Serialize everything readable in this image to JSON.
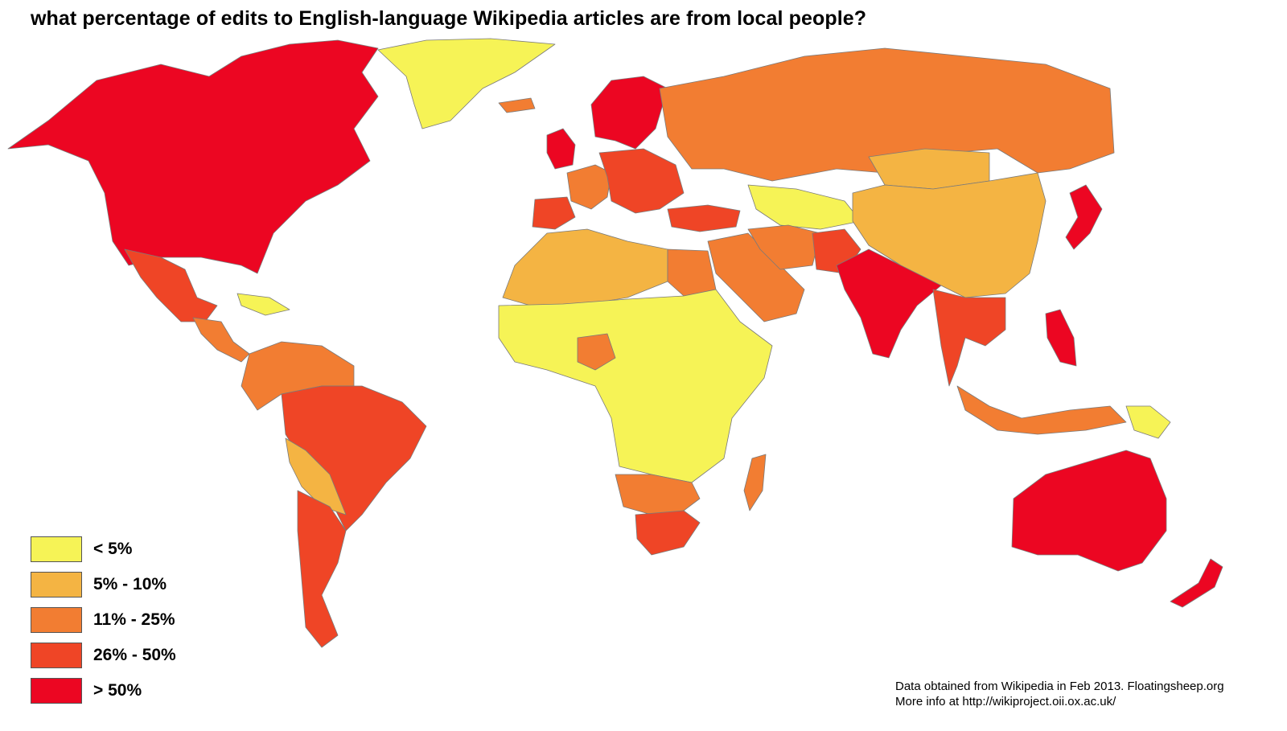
{
  "title": "what percentage of edits to English-language Wikipedia articles are from local people?",
  "legend": [
    {
      "label": "< 5%",
      "color": "#f6f356"
    },
    {
      "label": "5% - 10%",
      "color": "#f4b443"
    },
    {
      "label": "11% - 25%",
      "color": "#f27d32"
    },
    {
      "label": "26% - 50%",
      "color": "#ef4526"
    },
    {
      "label": "> 50%",
      "color": "#ec0622"
    }
  ],
  "credits": {
    "line1": "Data obtained from Wikipedia in Feb 2013. Floatingsheep.org",
    "line2": "More info at http://wikiproject.oii.ox.ac.uk/"
  },
  "regions": [
    {
      "name": "north-america",
      "category": 4
    },
    {
      "name": "greenland",
      "category": 0
    },
    {
      "name": "iceland",
      "category": 2
    },
    {
      "name": "mexico",
      "category": 3
    },
    {
      "name": "caribbean",
      "category": 0
    },
    {
      "name": "central-america",
      "category": 2
    },
    {
      "name": "south-america-north",
      "category": 2
    },
    {
      "name": "brazil",
      "category": 3
    },
    {
      "name": "bolivia",
      "category": 1
    },
    {
      "name": "argentina",
      "category": 3
    },
    {
      "name": "uk",
      "category": 4
    },
    {
      "name": "scandinavia",
      "category": 4
    },
    {
      "name": "western-europe",
      "category": 2
    },
    {
      "name": "iberia",
      "category": 3
    },
    {
      "name": "central-europe",
      "category": 3
    },
    {
      "name": "russia",
      "category": 2
    },
    {
      "name": "turkey",
      "category": 3
    },
    {
      "name": "north-africa",
      "category": 1
    },
    {
      "name": "egypt",
      "category": 2
    },
    {
      "name": "west-central-africa",
      "category": 0
    },
    {
      "name": "nigeria",
      "category": 2
    },
    {
      "name": "southern-africa",
      "category": 2
    },
    {
      "name": "south-africa",
      "category": 3
    },
    {
      "name": "madagascar",
      "category": 2
    },
    {
      "name": "middle-east",
      "category": 2
    },
    {
      "name": "central-asia",
      "category": 0
    },
    {
      "name": "iran",
      "category": 2
    },
    {
      "name": "pakistan",
      "category": 3
    },
    {
      "name": "india",
      "category": 4
    },
    {
      "name": "china",
      "category": 1
    },
    {
      "name": "mongolia",
      "category": 1
    },
    {
      "name": "japan",
      "category": 4
    },
    {
      "name": "southeast-asia",
      "category": 3
    },
    {
      "name": "philippines",
      "category": 4
    },
    {
      "name": "indonesia",
      "category": 2
    },
    {
      "name": "papua",
      "category": 0
    },
    {
      "name": "australia",
      "category": 4
    },
    {
      "name": "new-zealand",
      "category": 4
    }
  ]
}
